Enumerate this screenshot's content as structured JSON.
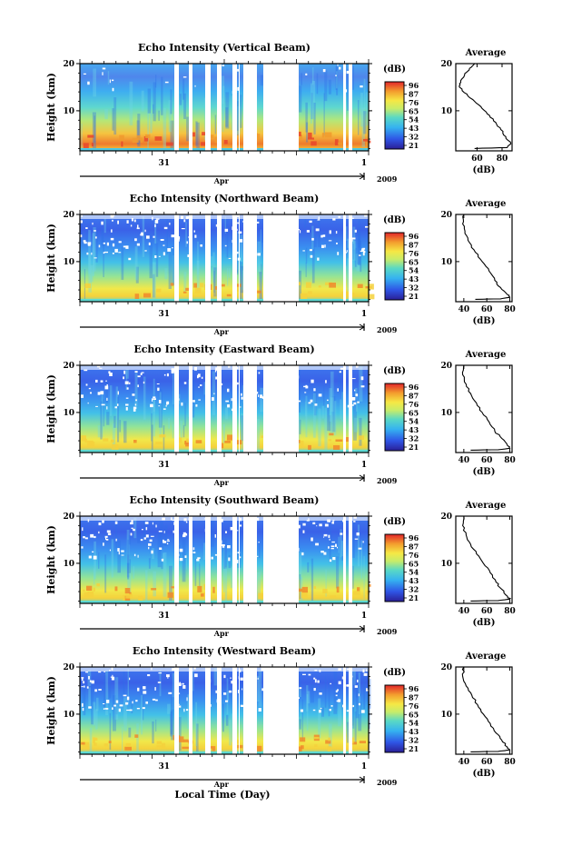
{
  "figure": {
    "xlabel": "Local Time (Day)",
    "panel_ylabel": "Height (km)",
    "colorbar_unit": "(dB)",
    "colorbar_ticks": [
      "96",
      "87",
      "76",
      "65",
      "54",
      "43",
      "32",
      "21"
    ],
    "profile_title": "Average",
    "profile_xlabel": "(dB)",
    "time_axis": {
      "day_label": "31",
      "end_label": "1",
      "month_label": "Apr",
      "year_label": "2009"
    }
  },
  "chart_data": [
    {
      "type": "heatmap",
      "title": "Echo Intensity (Vertical Beam)",
      "ylabel": "Height (km)",
      "ylim": [
        1.5,
        20
      ],
      "yticks": [
        "20",
        "10"
      ],
      "colorbar": {
        "label": "(dB)",
        "range": [
          21,
          96
        ]
      },
      "time_ticks": [
        "31",
        "1"
      ],
      "month": "Apr",
      "year": "2009",
      "profile": {
        "title": "Average",
        "xlabel": "(dB)",
        "xticks": [
          "60",
          "80"
        ],
        "xlim": [
          43,
          88
        ],
        "points": [
          [
            58,
            20
          ],
          [
            54,
            19
          ],
          [
            50,
            17.5
          ],
          [
            47,
            16
          ],
          [
            46,
            15
          ],
          [
            52,
            13.5
          ],
          [
            58,
            12
          ],
          [
            64,
            10.5
          ],
          [
            70,
            9
          ],
          [
            75,
            7.5
          ],
          [
            79,
            6
          ],
          [
            83,
            4.5
          ],
          [
            87,
            3
          ],
          [
            84,
            2.2
          ],
          [
            58,
            2
          ]
        ]
      }
    },
    {
      "type": "heatmap",
      "title": "Echo Intensity (Northward Beam)",
      "ylabel": "Height (km)",
      "ylim": [
        1.5,
        20
      ],
      "yticks": [
        "20",
        "10"
      ],
      "colorbar": {
        "label": "(dB)",
        "range": [
          21,
          96
        ]
      },
      "time_ticks": [
        "31",
        "1"
      ],
      "month": "Apr",
      "year": "2009",
      "profile": {
        "title": "Average",
        "xlabel": "(dB)",
        "xticks": [
          "40",
          "60",
          "80"
        ],
        "xlim": [
          33,
          82
        ],
        "points": [
          [
            40,
            20
          ],
          [
            39,
            18
          ],
          [
            41,
            16
          ],
          [
            45,
            14
          ],
          [
            50,
            12
          ],
          [
            56,
            10
          ],
          [
            62,
            8
          ],
          [
            67,
            6
          ],
          [
            72,
            4.5
          ],
          [
            78,
            3
          ],
          [
            80,
            2.4
          ],
          [
            72,
            2.1
          ],
          [
            50,
            2
          ]
        ]
      }
    },
    {
      "type": "heatmap",
      "title": "Echo Intensity (Eastward Beam)",
      "ylabel": "Height (km)",
      "ylim": [
        1.5,
        20
      ],
      "yticks": [
        "20",
        "10"
      ],
      "colorbar": {
        "label": "(dB)",
        "range": [
          21,
          96
        ]
      },
      "time_ticks": [
        "31",
        "1"
      ],
      "month": "Apr",
      "year": "2009",
      "profile": {
        "title": "Average",
        "xlabel": "(dB)",
        "xticks": [
          "40",
          "60",
          "80"
        ],
        "xlim": [
          33,
          82
        ],
        "points": [
          [
            40,
            20
          ],
          [
            39,
            18
          ],
          [
            42,
            16
          ],
          [
            46,
            14
          ],
          [
            51,
            12
          ],
          [
            56,
            10
          ],
          [
            62,
            8
          ],
          [
            67,
            6
          ],
          [
            73,
            4.5
          ],
          [
            78,
            3
          ],
          [
            80,
            2.4
          ],
          [
            70,
            2.1
          ],
          [
            46,
            2
          ]
        ]
      }
    },
    {
      "type": "heatmap",
      "title": "Echo Intensity (Southward Beam)",
      "ylabel": "Height (km)",
      "ylim": [
        1.5,
        20
      ],
      "yticks": [
        "20",
        "10"
      ],
      "colorbar": {
        "label": "(dB)",
        "range": [
          21,
          96
        ]
      },
      "time_ticks": [
        "31",
        "1"
      ],
      "month": "Apr",
      "year": "2009",
      "profile": {
        "title": "Average",
        "xlabel": "(dB)",
        "xticks": [
          "40",
          "60",
          "80"
        ],
        "xlim": [
          33,
          82
        ],
        "points": [
          [
            40,
            20
          ],
          [
            39,
            18
          ],
          [
            42,
            16
          ],
          [
            46,
            14
          ],
          [
            51,
            12
          ],
          [
            57,
            10
          ],
          [
            63,
            8
          ],
          [
            68,
            6
          ],
          [
            73,
            4.5
          ],
          [
            78,
            3
          ],
          [
            80,
            2.4
          ],
          [
            70,
            2.1
          ],
          [
            46,
            2
          ]
        ]
      }
    },
    {
      "type": "heatmap",
      "title": "Echo Intensity (Westward Beam)",
      "ylabel": "Height (km)",
      "ylim": [
        1.5,
        20
      ],
      "yticks": [
        "20",
        "10"
      ],
      "colorbar": {
        "label": "(dB)",
        "range": [
          21,
          96
        ]
      },
      "time_ticks": [
        "31",
        "1"
      ],
      "month": "Apr",
      "year": "2009",
      "profile": {
        "title": "Average",
        "xlabel": "(dB)",
        "xticks": [
          "40",
          "60",
          "80"
        ],
        "xlim": [
          33,
          82
        ],
        "points": [
          [
            40,
            20
          ],
          [
            39,
            18
          ],
          [
            42,
            16
          ],
          [
            47,
            14
          ],
          [
            52,
            12
          ],
          [
            57,
            10
          ],
          [
            63,
            8
          ],
          [
            68,
            6
          ],
          [
            73,
            4.5
          ],
          [
            78,
            3
          ],
          [
            80,
            2.4
          ],
          [
            70,
            2.1
          ],
          [
            46,
            2
          ]
        ]
      }
    }
  ]
}
